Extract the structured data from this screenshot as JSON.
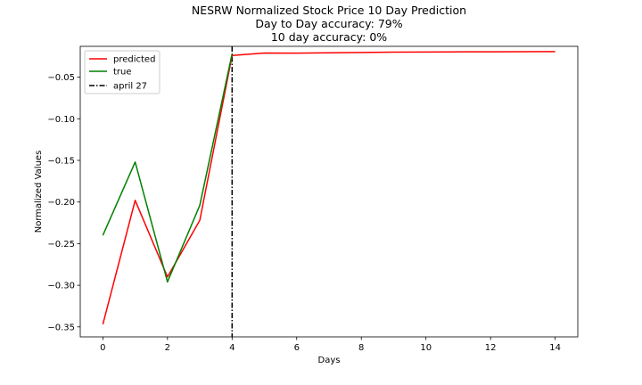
{
  "chart_data": {
    "type": "line",
    "title_lines": [
      "NESRW Normalized Stock Price 10 Day Prediction",
      "Day to Day accuracy: 79%",
      "10 day accuracy: 0%"
    ],
    "xlabel": "Days",
    "ylabel": "Normalized Values",
    "xlim": [
      -0.7,
      14.7
    ],
    "ylim": [
      -0.362,
      -0.013
    ],
    "xticks": [
      0,
      2,
      4,
      6,
      8,
      10,
      12,
      14
    ],
    "yticks": [
      -0.35,
      -0.3,
      -0.25,
      -0.2,
      -0.15,
      -0.1,
      -0.05
    ],
    "legend_position": "top-left",
    "series": [
      {
        "name": "predicted",
        "color": "#ff0000",
        "x": [
          0,
          1,
          2,
          3,
          4,
          5,
          6,
          7,
          8,
          9,
          10,
          11,
          12,
          13,
          14
        ],
        "y": [
          -0.347,
          -0.198,
          -0.29,
          -0.222,
          -0.024,
          -0.021,
          -0.0212,
          -0.0208,
          -0.0204,
          -0.02,
          -0.0198,
          -0.0196,
          -0.0195,
          -0.0194,
          -0.0193
        ]
      },
      {
        "name": "true",
        "color": "#008000",
        "x": [
          0,
          1,
          2,
          3,
          4
        ],
        "y": [
          -0.24,
          -0.152,
          -0.296,
          -0.204,
          -0.022
        ]
      }
    ],
    "vline": {
      "name": "april 27",
      "x": 4,
      "color": "#000000",
      "style": "dash-dot"
    }
  }
}
